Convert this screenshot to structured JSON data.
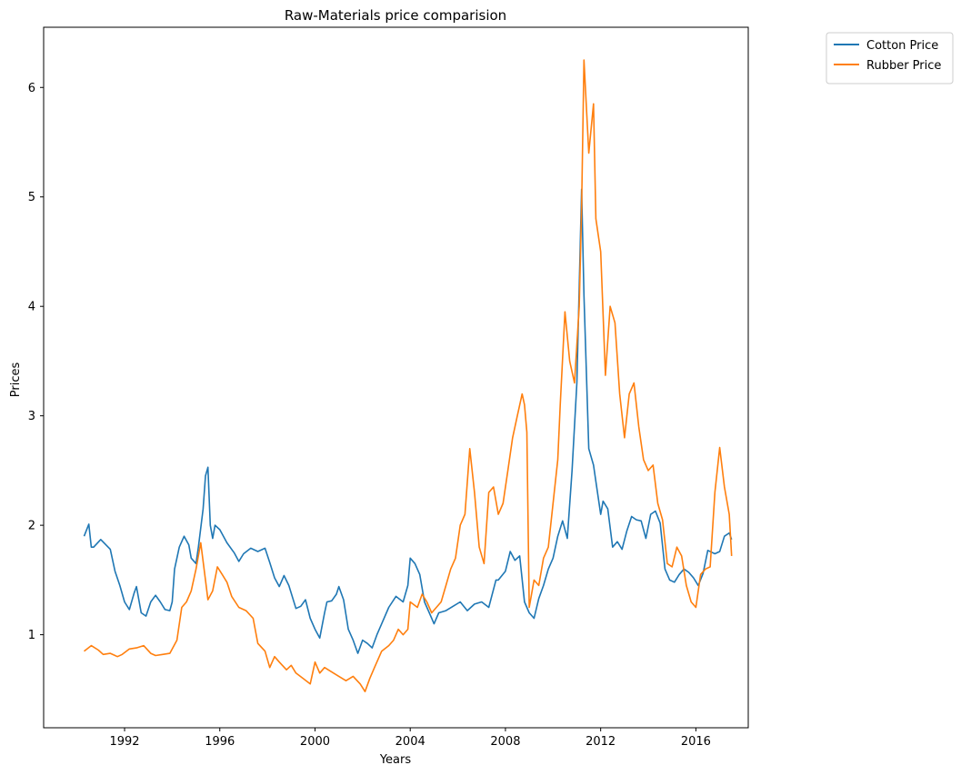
{
  "chart_data": {
    "type": "line",
    "title": "Raw-Materials price comparision",
    "xlabel": "Years",
    "ylabel": "Prices",
    "xlim": [
      1988.6,
      2018.2
    ],
    "ylim": [
      0.15,
      6.55
    ],
    "x_ticks": [
      1992,
      1996,
      2000,
      2004,
      2008,
      2012,
      2016
    ],
    "y_ticks": [
      1,
      2,
      3,
      4,
      5,
      6
    ],
    "grid": false,
    "legend_position": "outside-top-right",
    "series": [
      {
        "name": "Cotton Price",
        "color": "#1f77b4",
        "x": [
          1990.3,
          1990.5,
          1990.6,
          1990.7,
          1991.0,
          1991.4,
          1991.6,
          1991.8,
          1992.0,
          1992.2,
          1992.4,
          1992.5,
          1992.7,
          1992.9,
          1993.1,
          1993.3,
          1993.5,
          1993.7,
          1993.9,
          1994.0,
          1994.1,
          1994.3,
          1994.5,
          1994.7,
          1994.8,
          1995.0,
          1995.1,
          1995.3,
          1995.4,
          1995.5,
          1995.6,
          1995.7,
          1995.8,
          1996.0,
          1996.3,
          1996.6,
          1996.8,
          1997.0,
          1997.3,
          1997.6,
          1997.9,
          1998.1,
          1998.3,
          1998.5,
          1998.7,
          1998.9,
          1999.2,
          1999.4,
          1999.6,
          1999.8,
          2000.0,
          2000.2,
          2000.4,
          2000.5,
          2000.7,
          2000.9,
          2001.0,
          2001.2,
          2001.4,
          2001.6,
          2001.8,
          2002.0,
          2002.2,
          2002.4,
          2002.6,
          2002.8,
          2003.1,
          2003.4,
          2003.7,
          2003.9,
          2004.0,
          2004.2,
          2004.4,
          2004.6,
          2004.8,
          2005.0,
          2005.2,
          2005.5,
          2005.8,
          2006.1,
          2006.4,
          2006.7,
          2007.0,
          2007.3,
          2007.6,
          2007.7,
          2008.0,
          2008.2,
          2008.4,
          2008.6,
          2008.8,
          2009.0,
          2009.2,
          2009.4,
          2009.6,
          2009.8,
          2010.0,
          2010.2,
          2010.4,
          2010.6,
          2010.8,
          2011.0,
          2011.2,
          2011.3,
          2011.5,
          2011.7,
          2011.8,
          2012.0,
          2012.1,
          2012.3,
          2012.5,
          2012.7,
          2012.9,
          2013.1,
          2013.3,
          2013.5,
          2013.7,
          2013.9,
          2014.1,
          2014.3,
          2014.5,
          2014.7,
          2014.9,
          2015.1,
          2015.3,
          2015.5,
          2015.7,
          2015.9,
          2016.1,
          2016.3,
          2016.5,
          2016.8,
          2017.0,
          2017.2,
          2017.4,
          2017.5
        ],
        "values": [
          1.9,
          2.01,
          1.8,
          1.8,
          1.87,
          1.78,
          1.58,
          1.45,
          1.3,
          1.23,
          1.38,
          1.44,
          1.2,
          1.17,
          1.3,
          1.36,
          1.3,
          1.23,
          1.22,
          1.3,
          1.6,
          1.8,
          1.9,
          1.82,
          1.7,
          1.65,
          1.8,
          2.15,
          2.45,
          2.53,
          2.0,
          1.88,
          2.0,
          1.96,
          1.84,
          1.75,
          1.67,
          1.74,
          1.79,
          1.76,
          1.79,
          1.66,
          1.52,
          1.44,
          1.54,
          1.45,
          1.24,
          1.26,
          1.32,
          1.15,
          1.05,
          0.97,
          1.2,
          1.3,
          1.31,
          1.37,
          1.44,
          1.32,
          1.05,
          0.95,
          0.83,
          0.95,
          0.92,
          0.88,
          1.0,
          1.1,
          1.25,
          1.35,
          1.3,
          1.45,
          1.7,
          1.65,
          1.55,
          1.3,
          1.2,
          1.1,
          1.2,
          1.22,
          1.26,
          1.3,
          1.22,
          1.28,
          1.3,
          1.25,
          1.5,
          1.5,
          1.58,
          1.76,
          1.68,
          1.72,
          1.3,
          1.2,
          1.15,
          1.33,
          1.45,
          1.6,
          1.7,
          1.9,
          2.04,
          1.88,
          2.5,
          3.3,
          5.07,
          4.1,
          2.7,
          2.55,
          2.4,
          2.1,
          2.22,
          2.15,
          1.8,
          1.85,
          1.78,
          1.95,
          2.08,
          2.05,
          2.04,
          1.88,
          2.1,
          2.13,
          2.02,
          1.6,
          1.5,
          1.48,
          1.55,
          1.6,
          1.57,
          1.52,
          1.45,
          1.56,
          1.77,
          1.74,
          1.76,
          1.9,
          1.93,
          1.87
        ]
      },
      {
        "name": "Rubber Price",
        "color": "#ff7f0e",
        "x": [
          1990.3,
          1990.6,
          1990.9,
          1991.1,
          1991.4,
          1991.7,
          1991.9,
          1992.2,
          1992.5,
          1992.8,
          1993.1,
          1993.3,
          1993.6,
          1993.9,
          1994.2,
          1994.4,
          1994.6,
          1994.8,
          1995.0,
          1995.2,
          1995.4,
          1995.5,
          1995.7,
          1995.9,
          1996.1,
          1996.3,
          1996.5,
          1996.8,
          1997.1,
          1997.4,
          1997.6,
          1997.9,
          1998.1,
          1998.3,
          1998.5,
          1998.8,
          1999.0,
          1999.2,
          1999.5,
          1999.8,
          2000.0,
          2000.2,
          2000.4,
          2000.7,
          2001.0,
          2001.3,
          2001.6,
          2001.9,
          2002.1,
          2002.3,
          2002.5,
          2002.8,
          2003.1,
          2003.3,
          2003.5,
          2003.7,
          2003.9,
          2004.0,
          2004.3,
          2004.5,
          2004.7,
          2004.9,
          2005.1,
          2005.3,
          2005.5,
          2005.7,
          2005.9,
          2006.1,
          2006.3,
          2006.5,
          2006.7,
          2006.9,
          2007.1,
          2007.3,
          2007.5,
          2007.7,
          2007.9,
          2008.1,
          2008.3,
          2008.5,
          2008.7,
          2008.8,
          2008.9,
          2009.0,
          2009.2,
          2009.4,
          2009.6,
          2009.8,
          2010.0,
          2010.2,
          2010.3,
          2010.5,
          2010.7,
          2010.9,
          2011.1,
          2011.2,
          2011.3,
          2011.5,
          2011.7,
          2011.8,
          2012.0,
          2012.2,
          2012.4,
          2012.6,
          2012.8,
          2013.0,
          2013.2,
          2013.4,
          2013.6,
          2013.8,
          2014.0,
          2014.2,
          2014.4,
          2014.6,
          2014.8,
          2015.0,
          2015.2,
          2015.4,
          2015.6,
          2015.8,
          2016.0,
          2016.2,
          2016.4,
          2016.6,
          2016.8,
          2017.0,
          2017.2,
          2017.4,
          2017.5
        ],
        "values": [
          0.85,
          0.9,
          0.86,
          0.82,
          0.83,
          0.8,
          0.82,
          0.87,
          0.88,
          0.9,
          0.83,
          0.81,
          0.82,
          0.83,
          0.95,
          1.25,
          1.3,
          1.4,
          1.6,
          1.84,
          1.5,
          1.32,
          1.4,
          1.62,
          1.55,
          1.48,
          1.35,
          1.25,
          1.22,
          1.15,
          0.92,
          0.85,
          0.7,
          0.8,
          0.75,
          0.68,
          0.72,
          0.65,
          0.6,
          0.55,
          0.75,
          0.65,
          0.7,
          0.66,
          0.62,
          0.58,
          0.62,
          0.55,
          0.48,
          0.6,
          0.7,
          0.85,
          0.9,
          0.95,
          1.05,
          1.0,
          1.05,
          1.3,
          1.25,
          1.37,
          1.3,
          1.2,
          1.25,
          1.3,
          1.45,
          1.6,
          1.7,
          2.0,
          2.1,
          2.7,
          2.3,
          1.8,
          1.65,
          2.3,
          2.35,
          2.1,
          2.2,
          2.5,
          2.8,
          3.0,
          3.2,
          3.1,
          2.85,
          1.25,
          1.5,
          1.45,
          1.7,
          1.8,
          2.2,
          2.6,
          3.1,
          3.95,
          3.5,
          3.3,
          4.0,
          4.9,
          6.25,
          5.4,
          5.85,
          4.8,
          4.5,
          3.37,
          4.0,
          3.85,
          3.2,
          2.8,
          3.2,
          3.3,
          2.9,
          2.6,
          2.5,
          2.55,
          2.2,
          2.05,
          1.65,
          1.62,
          1.8,
          1.72,
          1.45,
          1.3,
          1.25,
          1.55,
          1.6,
          1.62,
          2.3,
          2.71,
          2.35,
          2.1,
          1.72
        ]
      }
    ]
  }
}
